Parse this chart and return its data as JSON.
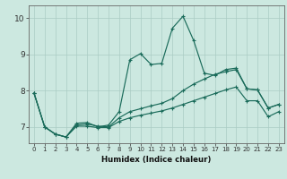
{
  "xlabel": "Humidex (Indice chaleur)",
  "bg_color": "#cce8e0",
  "line_color": "#1a6b5a",
  "grid_color": "#aaccC4",
  "xlim": [
    -0.5,
    23.5
  ],
  "ylim": [
    6.55,
    10.35
  ],
  "xticks": [
    0,
    1,
    2,
    3,
    4,
    5,
    6,
    7,
    8,
    9,
    10,
    11,
    12,
    13,
    14,
    15,
    16,
    17,
    18,
    19,
    20,
    21,
    22,
    23
  ],
  "yticks": [
    7,
    8,
    9,
    10
  ],
  "line1_x": [
    0,
    1,
    2,
    3,
    4,
    5,
    6,
    7,
    8,
    9,
    10,
    11,
    12,
    13,
    14,
    15,
    16,
    17,
    18,
    19,
    20,
    21,
    22,
    23
  ],
  "line1_y": [
    7.93,
    7.0,
    6.8,
    6.72,
    7.1,
    7.12,
    7.0,
    7.05,
    7.42,
    8.85,
    9.02,
    8.72,
    8.75,
    9.72,
    10.05,
    9.38,
    8.48,
    8.42,
    8.58,
    8.62,
    8.05,
    8.02,
    7.52,
    7.62
  ],
  "line2_x": [
    0,
    1,
    2,
    3,
    4,
    5,
    6,
    7,
    8,
    9,
    10,
    11,
    12,
    13,
    14,
    15,
    16,
    17,
    18,
    19,
    20,
    21,
    22,
    23
  ],
  "line2_y": [
    7.93,
    7.0,
    6.8,
    6.72,
    7.05,
    7.08,
    7.02,
    7.0,
    7.25,
    7.42,
    7.5,
    7.58,
    7.65,
    7.78,
    8.0,
    8.18,
    8.32,
    8.45,
    8.52,
    8.58,
    8.05,
    8.02,
    7.52,
    7.62
  ],
  "line3_x": [
    0,
    1,
    2,
    3,
    4,
    5,
    6,
    7,
    8,
    9,
    10,
    11,
    12,
    13,
    14,
    15,
    16,
    17,
    18,
    19,
    20,
    21,
    22,
    23
  ],
  "line3_y": [
    7.93,
    7.0,
    6.8,
    6.72,
    7.02,
    7.02,
    6.98,
    6.98,
    7.15,
    7.25,
    7.32,
    7.38,
    7.44,
    7.52,
    7.62,
    7.72,
    7.82,
    7.92,
    8.02,
    8.1,
    7.72,
    7.72,
    7.28,
    7.42
  ]
}
